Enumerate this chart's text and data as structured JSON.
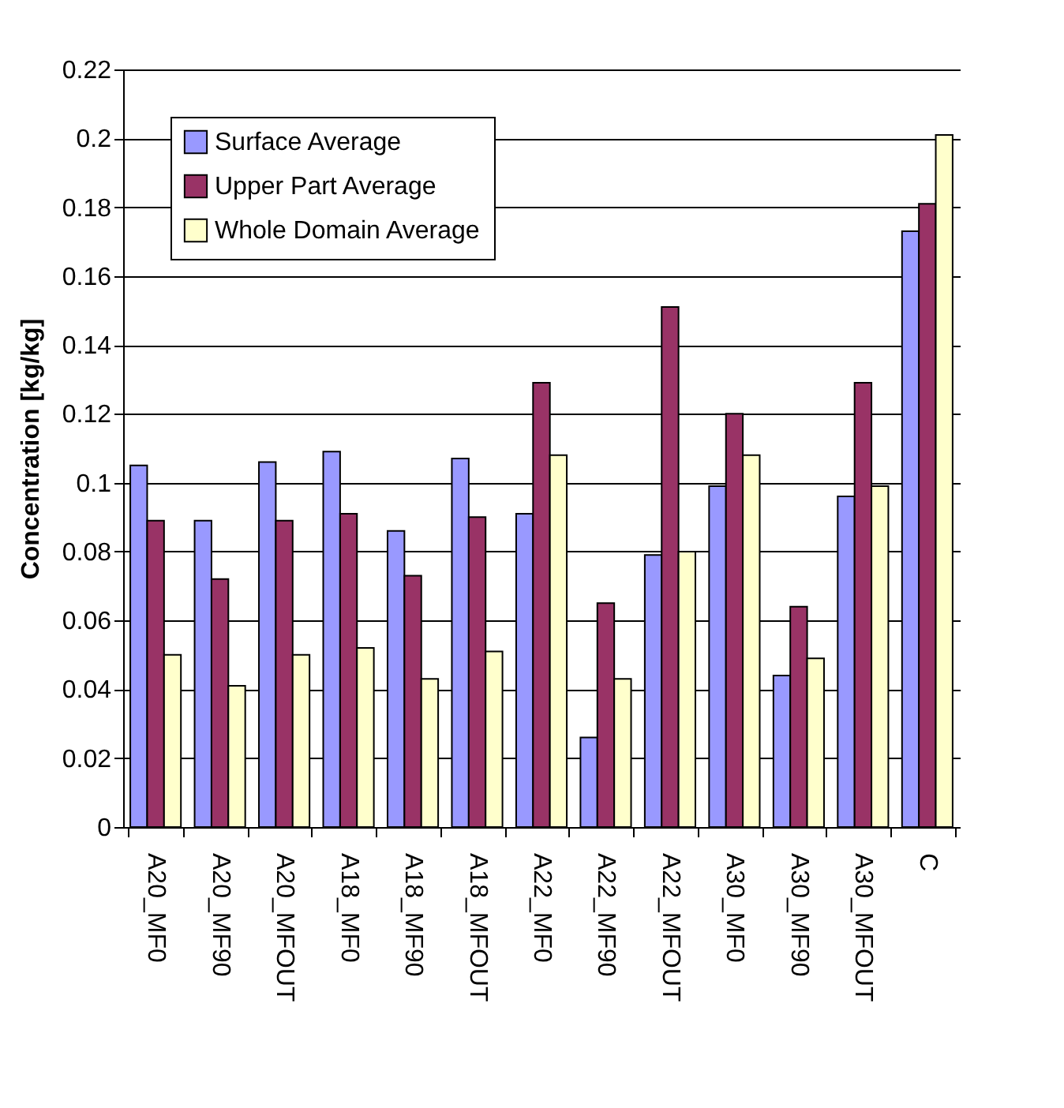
{
  "chart_data": {
    "type": "bar",
    "ylabel": "Concentration [kg/kg]",
    "categories": [
      "A20_MF0",
      "A20_MF90",
      "A20_MFOUT",
      "A18_MF0",
      "A18_MF90",
      "A18_MFOUT",
      "A22_MF0",
      "A22_MF90",
      "A22_MFOUT",
      "A30_MF0",
      "A30_MF90",
      "A30_MFOUT",
      "C"
    ],
    "series": [
      {
        "name": "Surface Average",
        "color": "#9999ff",
        "values": [
          0.105,
          0.089,
          0.106,
          0.109,
          0.086,
          0.107,
          0.091,
          0.026,
          0.079,
          0.099,
          0.044,
          0.096,
          0.173
        ]
      },
      {
        "name": "Upper Part Average",
        "color": "#993366",
        "values": [
          0.089,
          0.072,
          0.089,
          0.091,
          0.073,
          0.09,
          0.129,
          0.065,
          0.151,
          0.12,
          0.064,
          0.129,
          0.181
        ]
      },
      {
        "name": "Whole Domain Average",
        "color": "#ffffcc",
        "values": [
          0.05,
          0.041,
          0.05,
          0.052,
          0.043,
          0.051,
          0.108,
          0.043,
          0.08,
          0.108,
          0.049,
          0.099,
          0.201
        ]
      }
    ],
    "ylim": [
      0,
      0.22
    ],
    "yticks": [
      0,
      0.02,
      0.04,
      0.06,
      0.08,
      0.1,
      0.12,
      0.14,
      0.16,
      0.18,
      0.2,
      0.22
    ],
    "grid": "y",
    "legend": "top left"
  }
}
